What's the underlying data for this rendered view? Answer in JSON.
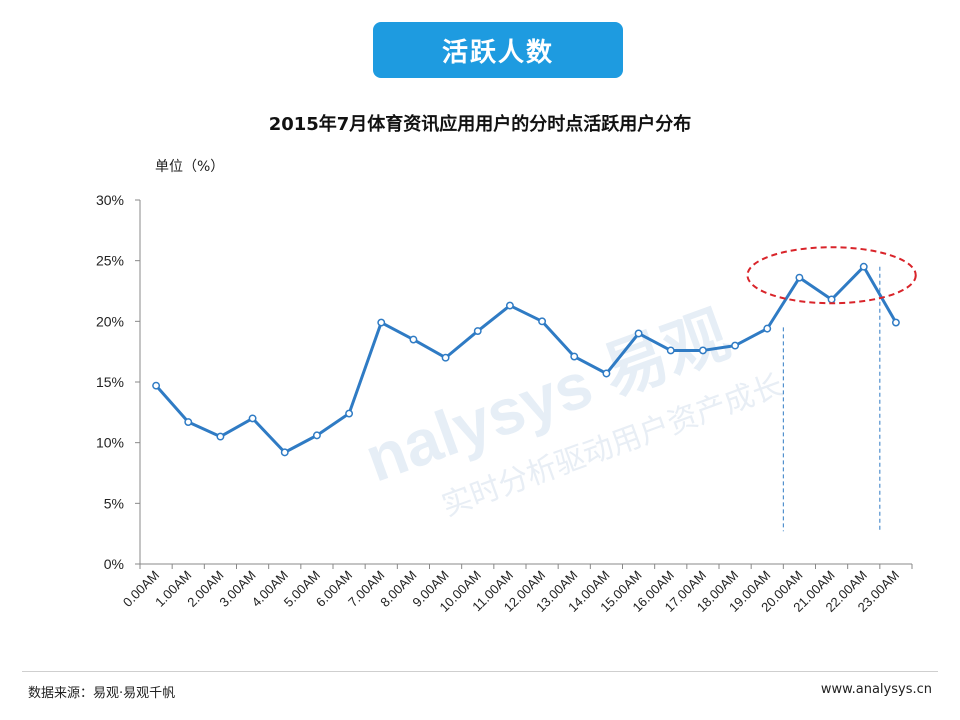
{
  "banner": {
    "label": "活跃人数"
  },
  "footer": {
    "source": "数据来源：易观·易观千帆",
    "site": "www.analysys.cn"
  },
  "watermark": {
    "brand": "易观",
    "latin": "nalysys",
    "slogan": "实时分析驱动用户资产成长"
  },
  "colors": {
    "banner": "#1e9be0",
    "line": "#2f7bc4",
    "highlight": "#d9242a",
    "dash": "#2f7bc4"
  },
  "chart_data": {
    "type": "line",
    "title": "2015年7月体育资讯应用用户的分时点活跃用户分布",
    "ylabel": "单位（%）",
    "xlabel": "",
    "ylim": [
      0,
      30
    ],
    "ytick_labels": [
      "0%",
      "5%",
      "10%",
      "15%",
      "20%",
      "25%",
      "30%"
    ],
    "ytick_values": [
      0,
      5,
      10,
      15,
      20,
      25,
      30
    ],
    "grid": false,
    "categories": [
      "0.00AM",
      "1.00AM",
      "2.00AM",
      "3.00AM",
      "4.00AM",
      "5.00AM",
      "6.00AM",
      "7.00AM",
      "8.00AM",
      "9.00AM",
      "10.00AM",
      "11.00AM",
      "12.00AM",
      "13.00AM",
      "14.00AM",
      "15.00AM",
      "16.00AM",
      "17.00AM",
      "18.00AM",
      "19.00AM",
      "20.00AM",
      "21.00AM",
      "22.00AM",
      "23.00AM"
    ],
    "series": [
      {
        "values": [
          14.7,
          11.7,
          10.5,
          12.0,
          9.2,
          10.6,
          12.4,
          19.9,
          18.5,
          17.0,
          19.2,
          21.3,
          20.0,
          17.1,
          15.7,
          19.0,
          17.6,
          17.6,
          18.0,
          19.4,
          23.6,
          21.8,
          24.5,
          19.9
        ]
      }
    ],
    "highlight_range": [
      "20.00AM",
      "22.00AM"
    ]
  }
}
